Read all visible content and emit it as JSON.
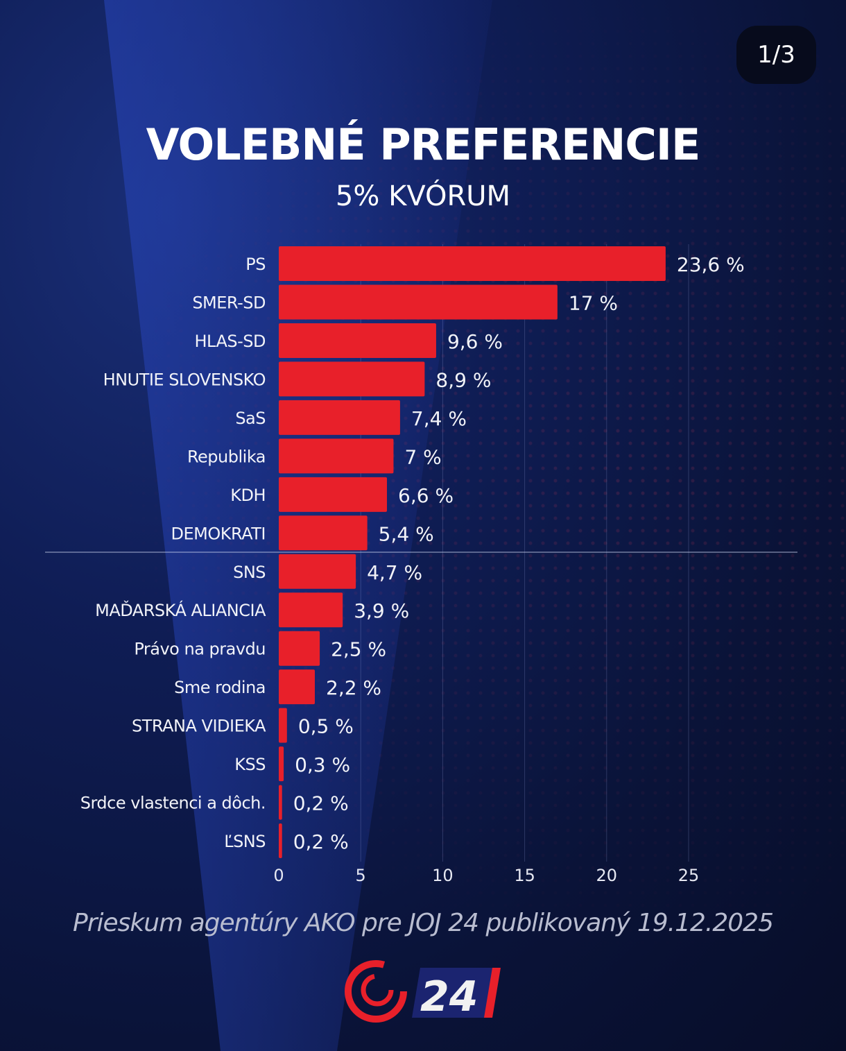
{
  "page_indicator": "1/3",
  "footer": "Prieskum agentúry AKO pre JOJ 24 publikovaný 19.12.2025",
  "logo_text": "24",
  "colors": {
    "bar": "#e8202a",
    "accent": "#e8202a"
  },
  "chart_data": {
    "type": "bar",
    "orientation": "horizontal",
    "title": "VOLEBNÉ PREFERENCIE",
    "subtitle": "5% KVÓRUM",
    "categories": [
      "PS",
      "SMER-SD",
      "HLAS-SD",
      "HNUTIE SLOVENSKO",
      "SaS",
      "Republika",
      "KDH",
      "DEMOKRATI",
      "SNS",
      "MAĎARSKÁ ALIANCIA",
      "Právo na pravdu",
      "Sme rodina",
      "STRANA VIDIEKA",
      "KSS",
      "Srdce vlastenci a dôch.",
      "ĽSNS"
    ],
    "values": [
      23.6,
      17,
      9.6,
      8.9,
      7.4,
      7,
      6.6,
      5.4,
      4.7,
      3.9,
      2.5,
      2.2,
      0.5,
      0.3,
      0.2,
      0.2
    ],
    "value_labels": [
      "23,6 %",
      "17 %",
      "9,6 %",
      "8,9 %",
      "7,4 %",
      "7 %",
      "6,6 %",
      "5,4 %",
      "4,7 %",
      "3,9 %",
      "2,5 %",
      "2,2 %",
      "0,5 %",
      "0,3 %",
      "0,2 %",
      "0,2 %"
    ],
    "xticks": [
      0,
      5,
      10,
      15,
      20,
      25
    ],
    "xlim": [
      0,
      25
    ],
    "threshold_after_index": 7,
    "grid": true
  }
}
